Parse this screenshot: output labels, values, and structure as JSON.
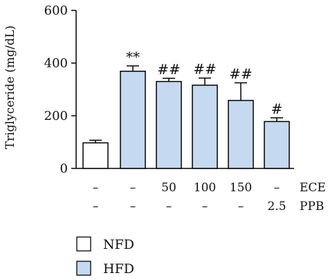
{
  "chart_data": {
    "type": "bar",
    "ylabel": "Triglyceride (mg/dL)",
    "ylim": [
      0,
      600
    ],
    "yticks": [
      0,
      200,
      400,
      600
    ],
    "grid": false,
    "legend_position": "bottom-left",
    "bars": [
      {
        "value": 97,
        "error": 10,
        "group": "NFD",
        "annotation": ""
      },
      {
        "value": 369,
        "error": 20,
        "group": "HFD",
        "annotation": "**"
      },
      {
        "value": 330,
        "error": 12,
        "group": "HFD",
        "annotation": "##"
      },
      {
        "value": 316,
        "error": 27,
        "group": "HFD",
        "annotation": "##"
      },
      {
        "value": 258,
        "error": 67,
        "group": "HFD",
        "annotation": "##"
      },
      {
        "value": 178,
        "error": 14,
        "group": "HFD",
        "annotation": "#"
      }
    ],
    "treatment_rows": [
      {
        "label": "ECE",
        "values": [
          "–",
          "–",
          "50",
          "100",
          "150",
          "–"
        ]
      },
      {
        "label": "PPB",
        "values": [
          "–",
          "–",
          "–",
          "–",
          "–",
          "2.5"
        ]
      }
    ],
    "legend": [
      {
        "name": "NFD",
        "color": "#ffffff"
      },
      {
        "name": "HFD",
        "color": "#c5d9f1"
      }
    ]
  }
}
